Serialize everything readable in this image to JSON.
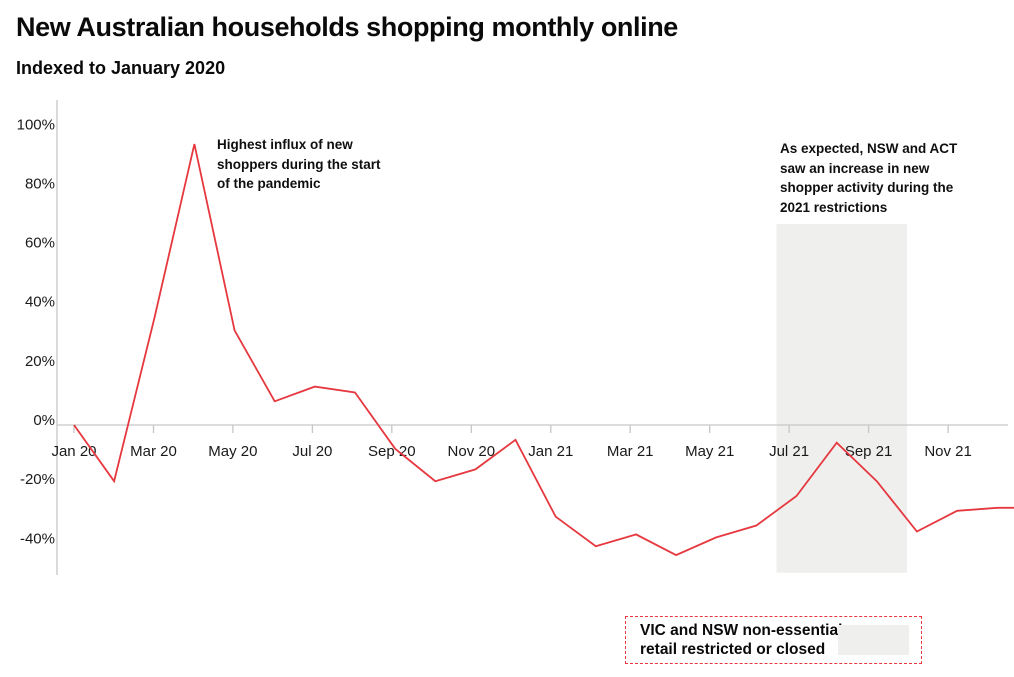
{
  "header": {
    "title": "New Australian households shopping monthly online",
    "subtitle": "Indexed to January 2020"
  },
  "chart_data": {
    "type": "line",
    "title": "New Australian households shopping monthly online",
    "subtitle": "Indexed to January 2020",
    "unit": "%",
    "grid": "off",
    "x": [
      "Jan 20",
      "Feb 20",
      "Mar 20",
      "Apr 20",
      "May 20",
      "Jun 20",
      "Jul 20",
      "Aug 20",
      "Sep 20",
      "Oct 20",
      "Nov 20",
      "Dec 20",
      "Jan 21",
      "Feb 21",
      "Mar 21",
      "Apr 21",
      "May 21",
      "Jun 21",
      "Jul 21",
      "Aug 21",
      "Sep 21",
      "Oct 21",
      "Nov 21",
      "Dec 21"
    ],
    "values": [
      0,
      -19,
      36,
      95,
      32,
      8,
      13,
      11,
      -8,
      -19,
      -15,
      -5,
      -31,
      -41,
      -37,
      -44,
      -38,
      -34,
      -24,
      -6,
      -19,
      -36,
      -29,
      -28
    ],
    "x_tick_labels": [
      "Jan 20",
      "Mar 20",
      "May 20",
      "Jul 20",
      "Sep 20",
      "Nov 20",
      "Jan 21",
      "Mar 21",
      "May 21",
      "Jul 21",
      "Sep 21",
      "Nov 21"
    ],
    "y_ticks": [
      100,
      80,
      60,
      40,
      20,
      0,
      -20,
      -40
    ],
    "y_tick_suffix": "%",
    "ylim": [
      -52,
      110
    ],
    "line_color": "#e5383f",
    "axis_color": "#c6c6c6",
    "line_extends_to_right_edge": true,
    "shaded_region": {
      "meaning": "VIC and NSW non-essential retail restricted or closed",
      "color": "#eff0ee",
      "from_month_index": 17.5,
      "to_month_index": 20.75,
      "top_value": 68,
      "bottom_value": -50
    },
    "annotations": [
      {
        "anchor_month": "Apr 20",
        "text": "Highest influx of new\nshoppers during the start\nof the pandemic"
      },
      {
        "anchor_month": "Aug 21",
        "text": "As expected, NSW and ACT\nsaw an increase in new\nshopper activity during the\n2021 restrictions"
      }
    ]
  },
  "legend": {
    "label": "VIC and NSW non-essential\nretail restricted or closed",
    "swatch_color": "#eff0ee",
    "border_color": "#e5383f"
  }
}
